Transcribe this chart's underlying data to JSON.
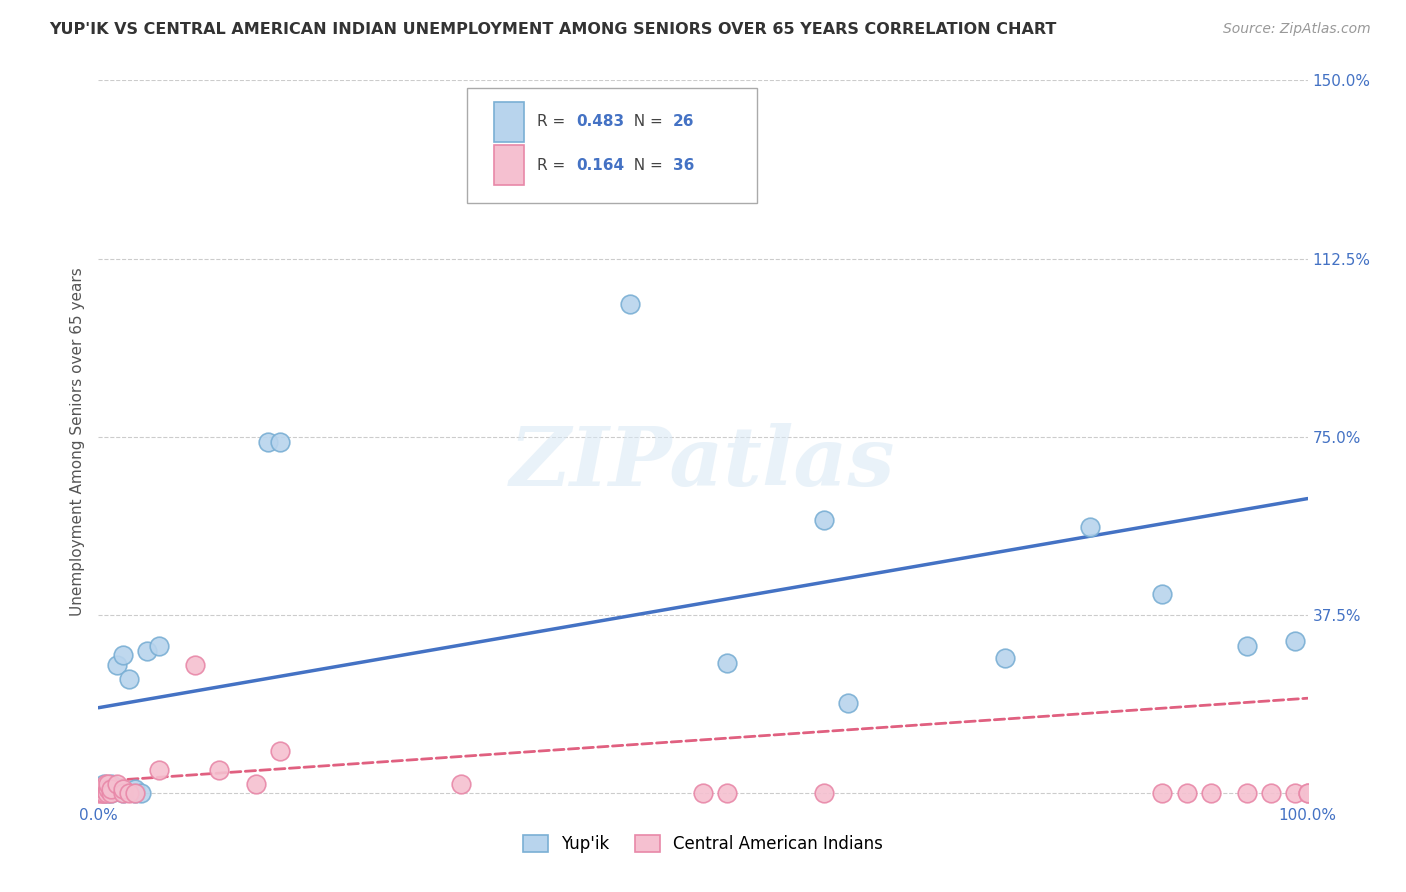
{
  "title": "YUP'IK VS CENTRAL AMERICAN INDIAN UNEMPLOYMENT AMONG SENIORS OVER 65 YEARS CORRELATION CHART",
  "source": "Source: ZipAtlas.com",
  "ylabel": "Unemployment Among Seniors over 65 years",
  "xlim": [
    0,
    1.0
  ],
  "ylim": [
    -0.02,
    1.5
  ],
  "xticks": [
    0.0,
    0.1,
    0.2,
    0.3,
    0.4,
    0.5,
    0.6,
    0.7,
    0.8,
    0.9,
    1.0
  ],
  "xticklabels": [
    "0.0%",
    "",
    "",
    "",
    "",
    "",
    "",
    "",
    "",
    "",
    "100.0%"
  ],
  "ytick_positions": [
    0.0,
    0.375,
    0.75,
    1.125,
    1.5
  ],
  "yticklabels": [
    "",
    "37.5%",
    "75.0%",
    "112.5%",
    "150.0%"
  ],
  "background_color": "#ffffff",
  "grid_color": "#cccccc",
  "watermark": "ZIPatlas",
  "legend_R1": "0.483",
  "legend_N1": "26",
  "legend_R2": "0.164",
  "legend_N2": "36",
  "series1_color": "#b8d4ed",
  "series1_edge": "#7aafd4",
  "series2_color": "#f5c0d0",
  "series2_edge": "#e888a8",
  "trendline1_color": "#4472C4",
  "trendline2_color": "#e06080",
  "yup_x": [
    0.005,
    0.005,
    0.005,
    0.008,
    0.01,
    0.01,
    0.015,
    0.02,
    0.02,
    0.025,
    0.03,
    0.03,
    0.035,
    0.04,
    0.05,
    0.14,
    0.15,
    0.44,
    0.52,
    0.6,
    0.62,
    0.75,
    0.82,
    0.88,
    0.95,
    0.99
  ],
  "yup_y": [
    0.0,
    0.01,
    0.02,
    0.0,
    0.0,
    0.02,
    0.27,
    0.29,
    0.0,
    0.24,
    0.0,
    0.01,
    0.0,
    0.3,
    0.31,
    0.74,
    0.74,
    1.03,
    0.275,
    0.575,
    0.19,
    0.285,
    0.56,
    0.42,
    0.31,
    0.32
  ],
  "ca_x": [
    0.0,
    0.0,
    0.002,
    0.002,
    0.004,
    0.004,
    0.005,
    0.005,
    0.006,
    0.007,
    0.008,
    0.008,
    0.01,
    0.01,
    0.015,
    0.02,
    0.02,
    0.025,
    0.03,
    0.05,
    0.08,
    0.1,
    0.13,
    0.15,
    0.3,
    0.5,
    0.52,
    0.6,
    0.88,
    0.9,
    0.92,
    0.95,
    0.97,
    0.99,
    1.0,
    1.0
  ],
  "ca_y": [
    0.0,
    0.01,
    0.0,
    0.01,
    0.0,
    0.01,
    0.0,
    0.01,
    0.02,
    0.0,
    0.01,
    0.02,
    0.0,
    0.01,
    0.02,
    0.0,
    0.01,
    0.0,
    0.0,
    0.05,
    0.27,
    0.05,
    0.02,
    0.09,
    0.02,
    0.0,
    0.0,
    0.0,
    0.0,
    0.0,
    0.0,
    0.0,
    0.0,
    0.0,
    0.0,
    0.0
  ],
  "trendline1_x0": 0.0,
  "trendline1_y0": 0.18,
  "trendline1_x1": 1.0,
  "trendline1_y1": 0.62,
  "trendline2_x0": 0.0,
  "trendline2_y0": 0.025,
  "trendline2_x1": 1.0,
  "trendline2_y1": 0.2
}
